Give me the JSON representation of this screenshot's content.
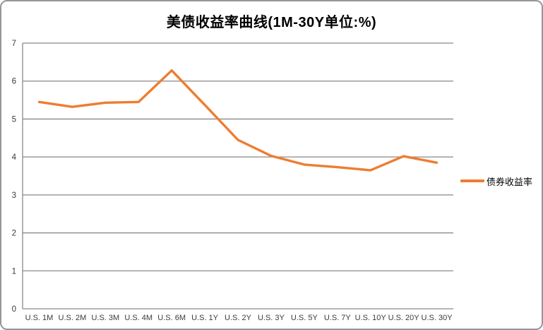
{
  "title": "美债收益率曲线(1M-30Y单位:%)",
  "legend": {
    "label": "债券收益率"
  },
  "colors": {
    "line": "#ED7D31",
    "grid": "#898989",
    "axis": "#898989",
    "border": "#969696",
    "tick_text": "#3A3A3A",
    "title_text": "#000000",
    "background": "#FFFFFF"
  },
  "y_axis": {
    "ticks": [
      0,
      1,
      2,
      3,
      4,
      5,
      6,
      7
    ]
  },
  "chart_data": {
    "type": "line",
    "title": "美债收益率曲线(1M-30Y单位:%)",
    "categories": [
      "U.S. 1M",
      "U.S. 2M",
      "U.S. 3M",
      "U.S. 4M",
      "U.S. 6M",
      "U.S. 1Y",
      "U.S. 2Y",
      "U.S. 3Y",
      "U.S. 5Y",
      "U.S. 7Y",
      "U.S. 10Y",
      "U.S. 20Y",
      "U.S. 30Y"
    ],
    "series": [
      {
        "name": "债券收益率",
        "values": [
          5.45,
          5.32,
          5.43,
          5.45,
          6.28,
          5.37,
          4.45,
          4.03,
          3.8,
          3.73,
          3.65,
          4.02,
          3.85
        ]
      }
    ],
    "xlabel": "",
    "ylabel": "",
    "ylim": [
      0,
      7
    ],
    "ytick_interval": 1,
    "grid": true,
    "legend_position": "right"
  }
}
